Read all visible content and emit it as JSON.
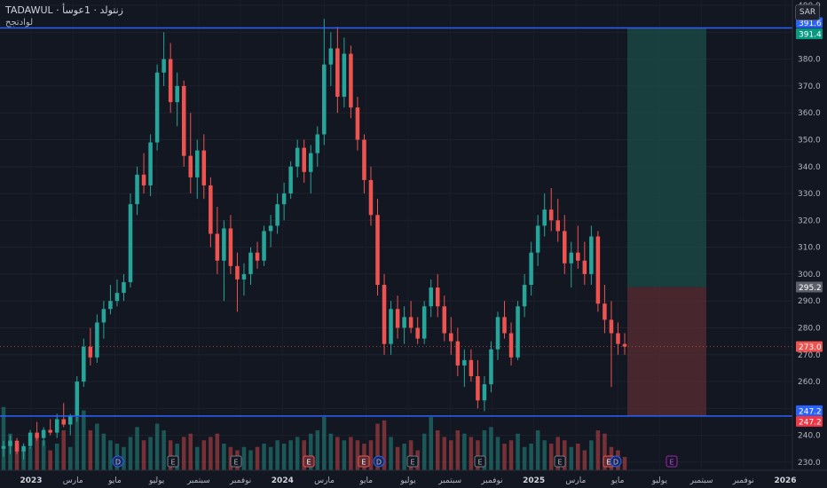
{
  "header": {
    "symbol_line": "TADAWUL · زنتولد · 1عوسأ",
    "subtitle": "لوادتجح"
  },
  "currency_button": "SAR",
  "colors": {
    "background": "#131722",
    "up": "#26a69a",
    "down": "#ef5350",
    "hline": "#2962ff",
    "target_zone": "#1b4d47",
    "stop_zone": "#5b2c33"
  },
  "price_axis": {
    "ticks": [
      400,
      390,
      380,
      370,
      360,
      350,
      340,
      330,
      320,
      310,
      300,
      290,
      280,
      270,
      260,
      250,
      240,
      230
    ],
    "min": 227,
    "max": 402
  },
  "time_axis": [
    "2023",
    "مارس",
    "مايو",
    "يوليو",
    "سبتمبر",
    "نوفمبر",
    "2024",
    "مارس",
    "مايو",
    "يوليو",
    "سبتمبر",
    "نوفمبر",
    "2025",
    "مارس",
    "مايو",
    "يوليو",
    "سبتمبر",
    "نوفمبر",
    "2026"
  ],
  "price_labels": {
    "upper_line": "391.6",
    "target": "391.4",
    "entry": "295.2",
    "current": "273.0",
    "lower_line": "247.2",
    "stop": "247.2"
  },
  "levels": {
    "upper_line": 391.6,
    "target": 391.4,
    "entry": 295.2,
    "current": 273.0,
    "lower_line": 247.2,
    "stop": 247.2
  },
  "event_markers": [
    {
      "letter": "D",
      "type": "dividend"
    },
    {
      "letter": "E",
      "type": "earnings"
    },
    {
      "letter": "E",
      "type": "earnings"
    },
    {
      "letter": "E",
      "type": "earnings"
    },
    {
      "letter": "E",
      "type": "earnings"
    },
    {
      "letter": "D",
      "type": "dividend"
    },
    {
      "letter": "E",
      "type": "earnings"
    },
    {
      "letter": "E",
      "type": "earnings"
    },
    {
      "letter": "E",
      "type": "earnings"
    },
    {
      "letter": "E",
      "type": "earnings"
    },
    {
      "letter": "D",
      "type": "dividend"
    },
    {
      "letter": "E",
      "type": "earnings-future"
    }
  ],
  "chart_data": {
    "type": "candlestick",
    "title": "",
    "note": "weekly candles, approximate values read from chart",
    "ohlc": [
      [
        235,
        238,
        232,
        236
      ],
      [
        236,
        240,
        233,
        238
      ],
      [
        238,
        239,
        233,
        234
      ],
      [
        234,
        237,
        231,
        236
      ],
      [
        236,
        242,
        235,
        241
      ],
      [
        241,
        245,
        238,
        239
      ],
      [
        239,
        243,
        236,
        242
      ],
      [
        242,
        246,
        240,
        241
      ],
      [
        241,
        248,
        239,
        246
      ],
      [
        246,
        252,
        243,
        244
      ],
      [
        244,
        248,
        240,
        247
      ],
      [
        247,
        262,
        245,
        260
      ],
      [
        260,
        276,
        258,
        273
      ],
      [
        273,
        280,
        266,
        269
      ],
      [
        269,
        285,
        267,
        282
      ],
      [
        282,
        290,
        276,
        287
      ],
      [
        287,
        296,
        285,
        290
      ],
      [
        290,
        298,
        288,
        293
      ],
      [
        293,
        300,
        290,
        297
      ],
      [
        297,
        330,
        295,
        326
      ],
      [
        326,
        340,
        322,
        337
      ],
      [
        337,
        345,
        330,
        333
      ],
      [
        333,
        352,
        329,
        349
      ],
      [
        349,
        378,
        346,
        375
      ],
      [
        375,
        390,
        370,
        380
      ],
      [
        380,
        386,
        360,
        364
      ],
      [
        364,
        375,
        355,
        370
      ],
      [
        370,
        372,
        340,
        344
      ],
      [
        344,
        360,
        330,
        336
      ],
      [
        336,
        350,
        328,
        346
      ],
      [
        346,
        352,
        328,
        333
      ],
      [
        333,
        336,
        310,
        315
      ],
      [
        315,
        325,
        300,
        305
      ],
      [
        305,
        320,
        290,
        317
      ],
      [
        317,
        322,
        300,
        303
      ],
      [
        303,
        308,
        286,
        298
      ],
      [
        298,
        304,
        292,
        300
      ],
      [
        300,
        310,
        296,
        308
      ],
      [
        308,
        312,
        302,
        305
      ],
      [
        305,
        318,
        303,
        316
      ],
      [
        316,
        322,
        310,
        318
      ],
      [
        318,
        330,
        315,
        326
      ],
      [
        326,
        334,
        320,
        330
      ],
      [
        330,
        342,
        328,
        340
      ],
      [
        340,
        350,
        336,
        347
      ],
      [
        347,
        350,
        334,
        338
      ],
      [
        338,
        348,
        330,
        345
      ],
      [
        345,
        355,
        340,
        352
      ],
      [
        352,
        395,
        348,
        378
      ],
      [
        378,
        390,
        370,
        384
      ],
      [
        384,
        392,
        360,
        366
      ],
      [
        366,
        388,
        362,
        382
      ],
      [
        382,
        385,
        358,
        362
      ],
      [
        362,
        366,
        346,
        350
      ],
      [
        350,
        352,
        330,
        335
      ],
      [
        335,
        340,
        318,
        322
      ],
      [
        322,
        328,
        292,
        296
      ],
      [
        296,
        300,
        270,
        274
      ],
      [
        274,
        290,
        270,
        287
      ],
      [
        287,
        292,
        276,
        280
      ],
      [
        280,
        288,
        274,
        284
      ],
      [
        284,
        290,
        278,
        280
      ],
      [
        280,
        284,
        274,
        276
      ],
      [
        276,
        290,
        274,
        288
      ],
      [
        288,
        298,
        284,
        295
      ],
      [
        295,
        300,
        284,
        288
      ],
      [
        288,
        292,
        275,
        278
      ],
      [
        278,
        284,
        270,
        275
      ],
      [
        275,
        280,
        262,
        266
      ],
      [
        266,
        272,
        258,
        268
      ],
      [
        268,
        272,
        260,
        262
      ],
      [
        262,
        268,
        250,
        253
      ],
      [
        253,
        262,
        249,
        259
      ],
      [
        259,
        275,
        256,
        272
      ],
      [
        272,
        286,
        268,
        284
      ],
      [
        284,
        290,
        276,
        278
      ],
      [
        278,
        282,
        266,
        269
      ],
      [
        269,
        290,
        268,
        288
      ],
      [
        288,
        300,
        284,
        296
      ],
      [
        296,
        312,
        292,
        308
      ],
      [
        308,
        322,
        303,
        318
      ],
      [
        318,
        330,
        314,
        324
      ],
      [
        324,
        332,
        316,
        320
      ],
      [
        320,
        328,
        312,
        316
      ],
      [
        316,
        322,
        300,
        304
      ],
      [
        304,
        312,
        295,
        308
      ],
      [
        308,
        318,
        302,
        305
      ],
      [
        305,
        312,
        296,
        300
      ],
      [
        300,
        318,
        296,
        314
      ],
      [
        314,
        316,
        286,
        289
      ],
      [
        289,
        296,
        278,
        283
      ],
      [
        283,
        290,
        258,
        278
      ],
      [
        278,
        282,
        270,
        274
      ],
      [
        274,
        278,
        270,
        273
      ]
    ],
    "volume_relative": [
      0.95,
      0.55,
      0.4,
      0.3,
      0.35,
      0.5,
      0.45,
      0.3,
      0.4,
      0.6,
      0.35,
      0.8,
      0.9,
      0.6,
      0.7,
      0.55,
      0.45,
      0.4,
      0.35,
      0.5,
      0.65,
      0.45,
      0.5,
      0.7,
      0.6,
      0.45,
      0.4,
      0.5,
      0.55,
      0.35,
      0.45,
      0.5,
      0.55,
      0.4,
      0.35,
      0.3,
      0.35,
      0.3,
      0.35,
      0.4,
      0.35,
      0.45,
      0.4,
      0.45,
      0.5,
      0.45,
      0.55,
      0.6,
      0.8,
      0.55,
      0.5,
      0.45,
      0.5,
      0.45,
      0.4,
      0.45,
      0.7,
      0.75,
      0.5,
      0.35,
      0.4,
      0.45,
      0.3,
      0.55,
      0.8,
      0.6,
      0.5,
      0.45,
      0.6,
      0.55,
      0.5,
      0.45,
      0.6,
      0.65,
      0.5,
      0.4,
      0.45,
      0.55,
      0.35,
      0.4,
      0.6,
      0.45,
      0.4,
      0.5,
      0.45,
      0.35,
      0.4,
      0.3,
      0.45,
      0.6,
      0.55,
      0.35,
      0.3,
      0.2
    ]
  }
}
